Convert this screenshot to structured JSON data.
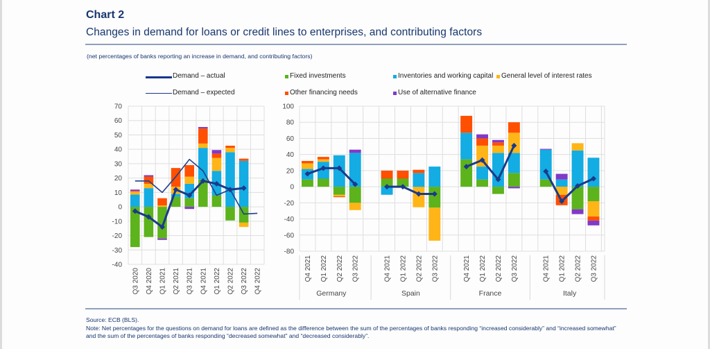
{
  "title": "Chart 2",
  "subtitle": "Changes in demand for loans or credit lines to enterprises, and contributing factors",
  "units_note": "(net percentages of banks reporting an increase in demand, and contributing factors)",
  "source": "Source: ECB (BLS).",
  "note": "Note: Net percentages for the questions on demand for loans are defined as the difference between the sum of the percentages of banks responding “increased considerably” and “increased somewhat” and the sum of the percentages of banks responding “decreased somewhat” and “decreased considerably”.",
  "legend": {
    "demand_actual": "Demand – actual",
    "demand_expected": "Demand – expected",
    "fixed": "Fixed investments",
    "inventories": "Inventories and working capital",
    "interest": "General level of interest rates",
    "other": "Other financing needs",
    "alternative": "Use of alternative finance"
  },
  "colors": {
    "fixed": "#5cb31b",
    "inventories": "#13ace3",
    "interest": "#ffb517",
    "other": "#ff4f00",
    "alternative": "#8139c6",
    "demand_actual": "#1a3a8a",
    "demand_expected": "#1f3e8c",
    "text": "#17366e"
  },
  "chart_data": [
    {
      "type": "bar",
      "name": "euro-area",
      "stacked": true,
      "title": "",
      "xlabel": "",
      "ylabel": "",
      "ylim": [
        -40,
        70
      ],
      "yticks": [
        70,
        60,
        50,
        40,
        30,
        20,
        10,
        0,
        -10,
        -20,
        -30,
        -40
      ],
      "grid": true,
      "legend_position": "top",
      "categories": [
        "Q3 2020",
        "Q4 2020",
        "Q1 2021",
        "Q2 2021",
        "Q3 2021",
        "Q4 2021",
        "Q1 2022",
        "Q2 2022",
        "Q3 2022",
        "Q4 2022"
      ],
      "series": [
        {
          "name": "Fixed investments",
          "key": "fixed",
          "values": [
            -28,
            -21,
            -22,
            7,
            6,
            19,
            8,
            -9.5,
            -11,
            null
          ]
        },
        {
          "name": "Inventories and working capital",
          "key": "inventories",
          "values": [
            8.5,
            13,
            0,
            2,
            10,
            22,
            17,
            38,
            32,
            null
          ]
        },
        {
          "name": "General level of interest rates",
          "key": "interest",
          "values": [
            2,
            3,
            1,
            5,
            5,
            3,
            9,
            3,
            -3,
            null
          ]
        },
        {
          "name": "Other financing needs",
          "key": "other",
          "values": [
            0.5,
            5,
            5,
            13,
            8,
            10.5,
            3,
            1.5,
            1.5,
            null
          ]
        },
        {
          "name": "Use of alternative finance",
          "key": "alternative",
          "values": [
            1,
            1,
            -1,
            0,
            -1.5,
            1,
            2.5,
            0,
            0,
            null
          ]
        }
      ],
      "lines": [
        {
          "name": "Demand – actual",
          "key": "demand_actual",
          "values": [
            -3,
            -7,
            -14,
            12,
            8,
            18,
            16,
            12,
            13,
            null
          ]
        },
        {
          "name": "Demand – expected",
          "key": "demand_expected",
          "values": [
            18,
            18,
            10,
            21,
            33,
            25,
            8,
            12,
            -5,
            -4.5
          ]
        }
      ]
    },
    {
      "type": "bar",
      "name": "countries",
      "stacked": true,
      "title": "",
      "xlabel": "",
      "ylabel": "",
      "ylim": [
        -80,
        100
      ],
      "yticks": [
        100,
        80,
        60,
        40,
        20,
        0,
        -20,
        -40,
        -60,
        -80
      ],
      "grid": true,
      "groups": [
        {
          "name": "Germany",
          "categories": [
            "Q4 2021",
            "Q1 2022",
            "Q2 2022",
            "Q3 2022"
          ],
          "series": {
            "fixed": [
              9,
              10,
              -10,
              -20
            ],
            "inventories": [
              13,
              21,
              39,
              42
            ],
            "interest": [
              7,
              3,
              -2,
              -9
            ],
            "other": [
              3,
              3,
              -1,
              0
            ],
            "alternative": [
              0,
              0,
              0,
              4
            ]
          },
          "demand_actual": [
            16,
            23,
            23,
            3
          ]
        },
        {
          "name": "Spain",
          "categories": [
            "Q4 2021",
            "Q1 2022",
            "Q2 2022",
            "Q3 2022"
          ],
          "series": {
            "fixed": [
              10,
              10,
              -0.5,
              -26
            ],
            "inventories": [
              -10,
              0,
              17,
              25
            ],
            "interest": [
              0,
              0,
              -25,
              -41
            ],
            "other": [
              10,
              10,
              4,
              0
            ],
            "alternative": [
              0,
              0,
              0,
              0
            ]
          },
          "demand_actual": [
            0,
            0,
            -9,
            -9
          ]
        },
        {
          "name": "France",
          "categories": [
            "Q4 2021",
            "Q1 2022",
            "Q2 2022",
            "Q3 2022"
          ],
          "series": {
            "fixed": [
              34,
              9,
              -9,
              17
            ],
            "inventories": [
              33,
              16,
              42,
              25
            ],
            "interest": [
              0,
              26,
              9,
              25
            ],
            "other": [
              21,
              9,
              4,
              13
            ],
            "alternative": [
              0,
              5,
              3,
              -2
            ]
          },
          "demand_actual": [
            25,
            33,
            9,
            51
          ]
        },
        {
          "name": "Italy",
          "categories": [
            "Q4 2021",
            "Q1 2022",
            "Q2 2022",
            "Q3 2022"
          ],
          "series": {
            "fixed": [
              9,
              0,
              -28,
              -18
            ],
            "inventories": [
              37,
              9,
              45,
              36
            ],
            "interest": [
              0,
              -10,
              9,
              -19
            ],
            "other": [
              0,
              -13,
              0,
              -5
            ],
            "alternative": [
              1,
              7,
              -6,
              -6
            ]
          },
          "demand_actual": [
            19,
            -18,
            1,
            10
          ]
        }
      ]
    }
  ]
}
